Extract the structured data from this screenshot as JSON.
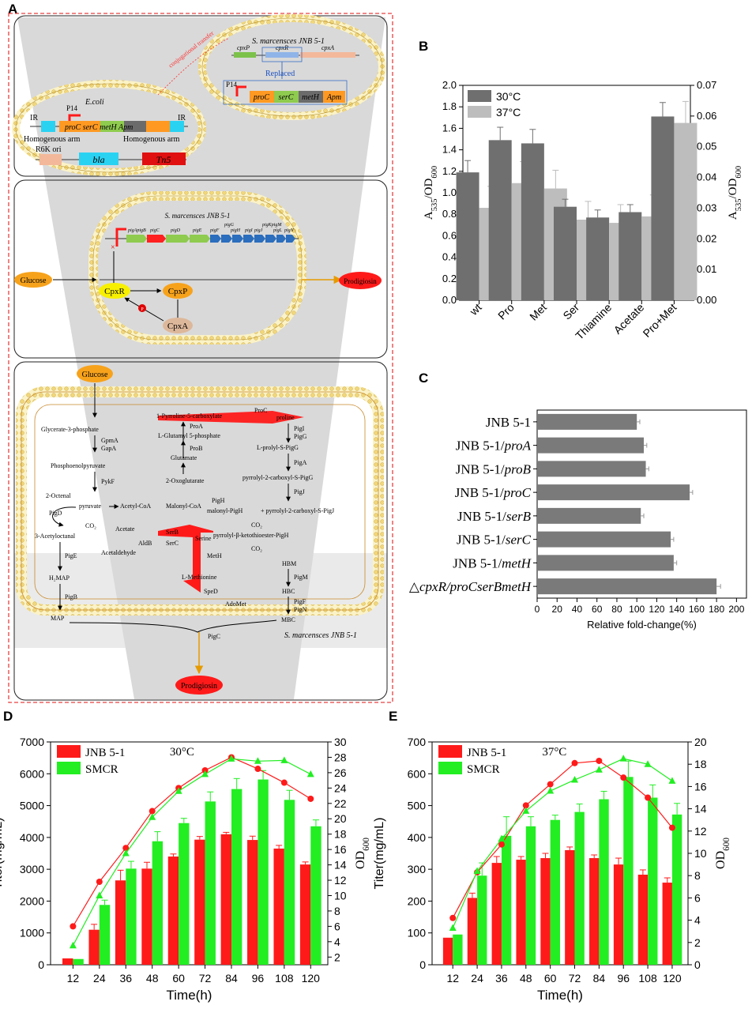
{
  "panel_labels": [
    "A",
    "B",
    "C",
    "D",
    "E"
  ],
  "colors": {
    "dark_bar": "#6f6f6f",
    "light_bar": "#bdbdbd",
    "c_bar": "#7a7a7a",
    "red": "#ff1a1a",
    "green": "#22ee22",
    "membrane": "#f6e6a0",
    "orange": "#f7a21b",
    "yellow_node": "#f7f000",
    "cyan_gene": "#2ad2f2",
    "blue_gene": "#2a6ebd",
    "green_gene": "#8ecb4e"
  },
  "panelA": {
    "box1": {
      "smarc_title": "S. marcensces JNB 5-1",
      "genes_top": [
        "cpxP",
        "cpxR",
        "cpxA"
      ],
      "replaced": "Replaced",
      "p14": "P14",
      "cassette": [
        "proC",
        "serC",
        "metH",
        "Apm"
      ],
      "transfer": "conjugational transfer",
      "ecoli": "E.coli",
      "ir": "IR",
      "ecoli_cassette": "proC serC metH Apm",
      "homarm": "Homogenous arm",
      "r6k": "R6K ori",
      "bla": "bla",
      "tn5": "Tn5"
    },
    "box2": {
      "title": "S. marcensces JNB 5-1",
      "pig_genes": [
        "pigA",
        "pigB",
        "pigC",
        "pigD",
        "pigE",
        "pigF",
        "pigG",
        "pigH",
        "pigI",
        "pigJ",
        "pigK",
        "pigL",
        "pigM",
        "pigN"
      ],
      "pig_visible": {
        "g1": "pigApigB",
        "g2": "pigC",
        "g3": "pigD",
        "g4": "pigE",
        "g5": "pigF",
        "g6": "pigG",
        "g7": "pigH",
        "g8": "pigI",
        "g9": "pigJ",
        "g10": "pigKpigM",
        "g11": "pigL",
        "g12": "pigN"
      },
      "glucose": "Glucose",
      "cpxr": "CpxR",
      "cpxp": "CpxP",
      "cpxa": "CpxA",
      "p": "P",
      "x": "×",
      "prodigiosin": "Prodigiosin"
    },
    "box3": {
      "glucose": "Glucose",
      "prodigiosin": "Prodigiosin",
      "species": "S. marcensces JNB 5-1",
      "nodes": {
        "g3p": "Glycerate-3-phosphate",
        "gpma": "GpmA",
        "gapa": "GapA",
        "pep": "Phosphoenolpyruvate",
        "pykf": "PykF",
        "pyr": "pyruvate",
        "octenal": "2-Octenal",
        "pigd": "PigD",
        "co2a": "CO₂",
        "acetyloctanal": "3-Acetyloctanal",
        "pige": "PigE",
        "h2map": "H₂MAP",
        "pigb": "PigB",
        "map": "MAP",
        "p5c": "1-Pyrroline-5-carboxylate",
        "proc": "ProC",
        "proline": "proline",
        "proa": "ProA",
        "glutp": "L-Glutamyl 5-phosphate",
        "prob": "ProB",
        "glu": "Glutamate",
        "oxo": "2-Oxoglutarate",
        "acoa": "Acetyl-CoA",
        "macoa": "Malonyl-CoA",
        "pigh": "PigH",
        "mpigh": "malonyl-PigH",
        "acetate": "Acetate",
        "aldb": "AldB",
        "acetald": "Acetaldehyde",
        "serb": "SerB",
        "serc": "SerC",
        "serine": "Serine",
        "meth": "MetH",
        "met": "L-Methionine",
        "sped": "SpeD",
        "adomet": "AdoMet",
        "pigi": "PigI",
        "pigg": "PigG",
        "prolyl": "L-prolyl-S-PigG",
        "piga": "PigA",
        "pyrg": "pyrrolyl-2-carboxyl-S-PigG",
        "pigj": "PigJ",
        "pyrj": "+ pyrrolyl-2-carboxyl-S-PigJ",
        "co2b": "CO₂",
        "ketoth": "pyrrolyl-β-ketothioester-PigH",
        "co2c": "CO₂",
        "hbm": "HBM",
        "pigm": "PigM",
        "hbc": "HBC",
        "pigf": "PigF",
        "pign": "PigN",
        "mbc": "MBC",
        "pigc": "PigC"
      }
    }
  },
  "chart_data": [
    {
      "panel": "B",
      "type": "bar",
      "categories": [
        "wt",
        "Pro",
        "Met",
        "Ser",
        "Thiamine",
        "Acetate",
        "Pro+Met"
      ],
      "series": [
        {
          "name": "30°C",
          "values": [
            1.19,
            1.49,
            1.46,
            0.87,
            0.77,
            0.82,
            1.71
          ],
          "errors": [
            0.11,
            0.12,
            0.13,
            0.07,
            0.07,
            0.07,
            0.13
          ]
        },
        {
          "name": "37°C",
          "values": [
            0.86,
            1.09,
            1.04,
            0.75,
            0.72,
            0.78,
            1.65
          ],
          "errors": [
            0.2,
            0.2,
            0.17,
            0.17,
            0.17,
            0.2,
            0.2
          ]
        }
      ],
      "ylabel": "A535/OD600",
      "ylim": [
        0,
        2.0
      ],
      "yticks": [
        "0.0",
        "0.2",
        "0.4",
        "0.6",
        "0.8",
        "1.0",
        "1.2",
        "1.4",
        "1.6",
        "1.8",
        "2.0"
      ],
      "y2label": "A535/OD600",
      "y2lim": [
        0,
        0.07
      ],
      "y2ticks": [
        "0.00",
        "0.01",
        "0.02",
        "0.03",
        "0.04",
        "0.05",
        "0.06",
        "0.07"
      ],
      "legend": "top-left"
    },
    {
      "panel": "C",
      "type": "bar",
      "orientation": "horizontal",
      "categories": [
        "JNB 5-1",
        "JNB 5-1/proA",
        "JNB 5-1/proB",
        "JNB 5-1/proC",
        "JNB 5-1/serB",
        "JNB 5-1/serC",
        "JNB 5-1/metH",
        "△cpxR/proCserBmetH"
      ],
      "category_parts": [
        [
          "JNB 5-1",
          ""
        ],
        [
          "JNB 5-1/",
          "proA"
        ],
        [
          "JNB 5-1/",
          "proB"
        ],
        [
          "JNB 5-1/",
          "proC"
        ],
        [
          "JNB 5-1/",
          "serB"
        ],
        [
          "JNB 5-1/",
          "serC"
        ],
        [
          "JNB 5-1/",
          "metH"
        ],
        [
          "△",
          "cpxR/proCserBmetH"
        ]
      ],
      "values": [
        100,
        107,
        109,
        153,
        104,
        134,
        137,
        180
      ],
      "errors": [
        3,
        3,
        3,
        3,
        3,
        3,
        3,
        4
      ],
      "xlabel": "Relative fold-change(%)",
      "xlim": [
        0,
        210
      ],
      "xticks": [
        "0",
        "20",
        "40",
        "60",
        "80",
        "100",
        "120",
        "140",
        "160",
        "180",
        "200"
      ]
    },
    {
      "panel": "D",
      "type": "bar+line",
      "annotation": "30°C",
      "categories": [
        "12",
        "24",
        "36",
        "48",
        "60",
        "72",
        "84",
        "96",
        "108",
        "120"
      ],
      "series": [
        {
          "name": "JNB 5-1",
          "titer": [
            200,
            1100,
            2650,
            3020,
            3400,
            3930,
            4100,
            3920,
            3650,
            3150
          ],
          "titer_err": [
            0,
            170,
            320,
            200,
            80,
            100,
            60,
            120,
            100,
            80
          ],
          "od600": [
            6.0,
            11.8,
            16.2,
            21.0,
            24.0,
            26.3,
            28.0,
            26.5,
            24.7,
            22.6
          ]
        },
        {
          "name": "SMCR",
          "titer": [
            180,
            1880,
            3020,
            3880,
            4450,
            5130,
            5520,
            5820,
            5180,
            4350
          ],
          "titer_err": [
            0,
            150,
            230,
            300,
            150,
            300,
            330,
            280,
            300,
            200
          ],
          "od600": [
            3.5,
            10.0,
            15.5,
            20.2,
            23.6,
            25.8,
            27.8,
            27.5,
            27.6,
            25.8
          ]
        }
      ],
      "xlabel": "Time(h)",
      "ylabel": "Titer(mg/mL)",
      "ylim": [
        0,
        7000
      ],
      "yticks": [
        "0",
        "1000",
        "2000",
        "3000",
        "4000",
        "5000",
        "6000",
        "7000"
      ],
      "y2label": "OD600",
      "y2lim": [
        1,
        30
      ],
      "y2ticks": [
        "2",
        "4",
        "6",
        "8",
        "10",
        "12",
        "14",
        "16",
        "18",
        "20",
        "22",
        "24",
        "26",
        "28",
        "30"
      ],
      "legend": "top-left"
    },
    {
      "panel": "E",
      "type": "bar+line",
      "annotation": "37°C",
      "categories": [
        "12",
        "24",
        "36",
        "48",
        "60",
        "72",
        "84",
        "96",
        "108",
        "120"
      ],
      "series": [
        {
          "name": "JNB 5-1",
          "titer": [
            85,
            210,
            320,
            330,
            335,
            360,
            335,
            315,
            283,
            258
          ],
          "titer_err": [
            0,
            15,
            20,
            10,
            15,
            10,
            10,
            20,
            15,
            15
          ],
          "od600": [
            4.2,
            8.3,
            10.8,
            14.3,
            16.2,
            18.1,
            18.3,
            16.8,
            15.0,
            12.3
          ]
        },
        {
          "name": "SMCR",
          "titer": [
            95,
            280,
            405,
            435,
            455,
            480,
            520,
            590,
            525,
            472
          ],
          "titer_err": [
            0,
            40,
            60,
            30,
            15,
            25,
            25,
            50,
            40,
            35
          ],
          "od600": [
            3.3,
            8.4,
            11.3,
            13.8,
            15.6,
            16.6,
            17.5,
            18.5,
            18.0,
            16.5
          ]
        }
      ],
      "xlabel": "Time(h)",
      "ylabel": "Titer(mg/mL)",
      "ylim": [
        0,
        700
      ],
      "yticks": [
        "0",
        "100",
        "200",
        "300",
        "400",
        "500",
        "600",
        "700"
      ],
      "y2label": "OD600",
      "y2lim": [
        0,
        20
      ],
      "y2ticks": [
        "0",
        "2",
        "4",
        "6",
        "8",
        "10",
        "12",
        "14",
        "16",
        "18",
        "20"
      ],
      "legend": "top-left"
    }
  ]
}
